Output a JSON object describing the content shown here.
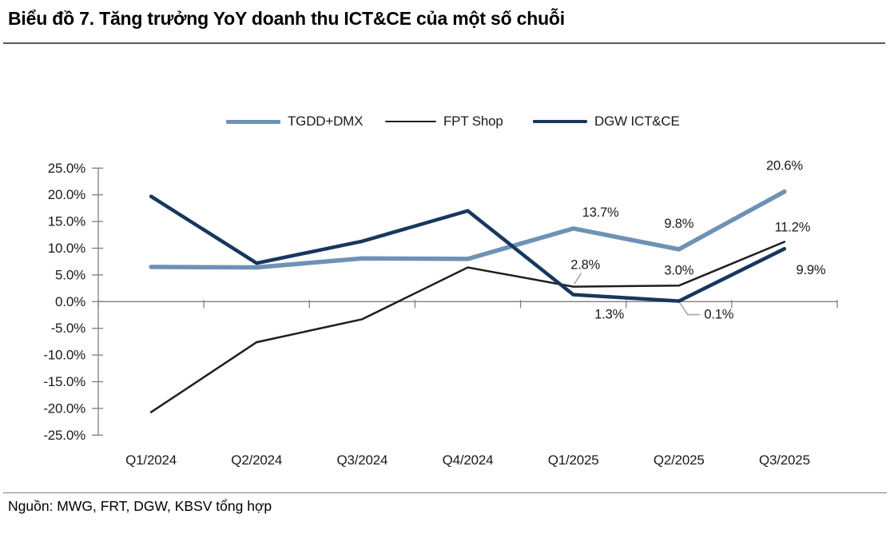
{
  "chart_data": {
    "type": "line",
    "title": "Biểu đồ 7. Tăng trưởng YoY doanh thu ICT&CE của một số chuỗi",
    "source": "Nguồn: MWG, FRT, DGW, KBSV tổng hợp",
    "categories": [
      "Q1/2024",
      "Q2/2024",
      "Q3/2024",
      "Q4/2024",
      "Q1/2025",
      "Q2/2025",
      "Q3/2025"
    ],
    "series": [
      {
        "name": "TGDD+DMX",
        "color": "#6e92b5",
        "values": [
          6.5,
          6.4,
          8.1,
          8.0,
          13.7,
          9.8,
          20.6
        ],
        "point_labels": [
          "",
          "",
          "",
          "",
          "13.7%",
          "9.8%",
          "20.6%"
        ]
      },
      {
        "name": "FPT Shop",
        "color": "#1e1e1e",
        "values": [
          -20.7,
          -7.6,
          -3.3,
          6.4,
          2.8,
          3.0,
          11.2
        ],
        "point_labels": [
          "",
          "",
          "",
          "",
          "2.8%",
          "3.0%",
          "11.2%"
        ]
      },
      {
        "name": "DGW ICT&CE",
        "color": "#17375e",
        "values": [
          19.7,
          7.2,
          11.3,
          17.0,
          1.3,
          0.1,
          9.9
        ],
        "point_labels": [
          "",
          "",
          "",
          "",
          "1.3%",
          "0.1%",
          "9.9%"
        ]
      }
    ],
    "ylim": [
      -25,
      25
    ],
    "ytick_step": 5,
    "ytick_suffix": "%",
    "grid": false,
    "legend_position": "top",
    "axis_color": "#7f7f7f",
    "callout_color": "#a6a6a6"
  }
}
